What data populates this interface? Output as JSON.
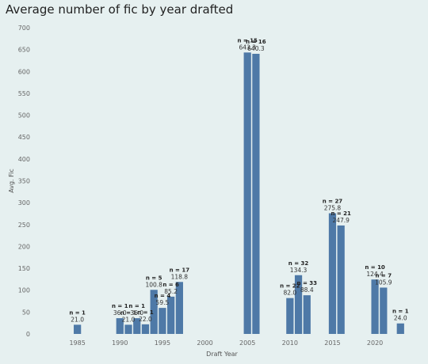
{
  "title": "Average number of fic by year drafted",
  "chart_data": {
    "type": "bar",
    "title": "Average number of fic by year drafted",
    "xlabel": "Draft Year",
    "ylabel": "Avg. Fic",
    "ylim": [
      0,
      700
    ],
    "yticks": [
      0,
      50,
      100,
      150,
      200,
      250,
      300,
      350,
      400,
      450,
      500,
      550,
      600,
      650,
      700
    ],
    "xlim": [
      1980,
      2024
    ],
    "xticks": [
      1985,
      1990,
      1995,
      2000,
      2005,
      2010,
      2015,
      2020
    ],
    "grid": false,
    "color": "#4e79a7",
    "bars": [
      {
        "x": 1985,
        "value": 21.0,
        "value_label": "21.0",
        "n_label": "n = 1"
      },
      {
        "x": 1990,
        "value": 36.0,
        "value_label": "36.0",
        "n_label": "n = 1"
      },
      {
        "x": 1991,
        "value": 21.0,
        "value_label": "21.0",
        "n_label": "n = 1"
      },
      {
        "x": 1992,
        "value": 36.0,
        "value_label": "36.0",
        "n_label": "n = 1"
      },
      {
        "x": 1993,
        "value": 22.0,
        "value_label": "22.0",
        "n_label": "n = 1"
      },
      {
        "x": 1994,
        "value": 100.8,
        "value_label": "100.8",
        "n_label": "n = 5"
      },
      {
        "x": 1995,
        "value": 59.5,
        "value_label": "59.5",
        "n_label": "n = 4"
      },
      {
        "x": 1996,
        "value": 85.2,
        "value_label": "85.2",
        "n_label": "n = 6"
      },
      {
        "x": 1997,
        "value": 118.8,
        "value_label": "118.8",
        "n_label": "n = 17"
      },
      {
        "x": 2005,
        "value": 643.3,
        "value_label": "643.3",
        "n_label": "n = 15"
      },
      {
        "x": 2006,
        "value": 640.3,
        "value_label": "640.3",
        "n_label": "n = 16"
      },
      {
        "x": 2010,
        "value": 82.0,
        "value_label": "82.0",
        "n_label": "n = 22"
      },
      {
        "x": 2011,
        "value": 134.3,
        "value_label": "134.3",
        "n_label": "n = 32"
      },
      {
        "x": 2012,
        "value": 88.4,
        "value_label": "88.4",
        "n_label": "n = 33"
      },
      {
        "x": 2015,
        "value": 275.8,
        "value_label": "275.8",
        "n_label": "n = 27"
      },
      {
        "x": 2016,
        "value": 247.9,
        "value_label": "247.9",
        "n_label": "n = 21"
      },
      {
        "x": 2020,
        "value": 124.4,
        "value_label": "124.4",
        "n_label": "n = 10"
      },
      {
        "x": 2021,
        "value": 105.9,
        "value_label": "105.9",
        "n_label": "n = 7"
      },
      {
        "x": 2023,
        "value": 24.0,
        "value_label": "24.0",
        "n_label": "n = 1"
      }
    ]
  }
}
